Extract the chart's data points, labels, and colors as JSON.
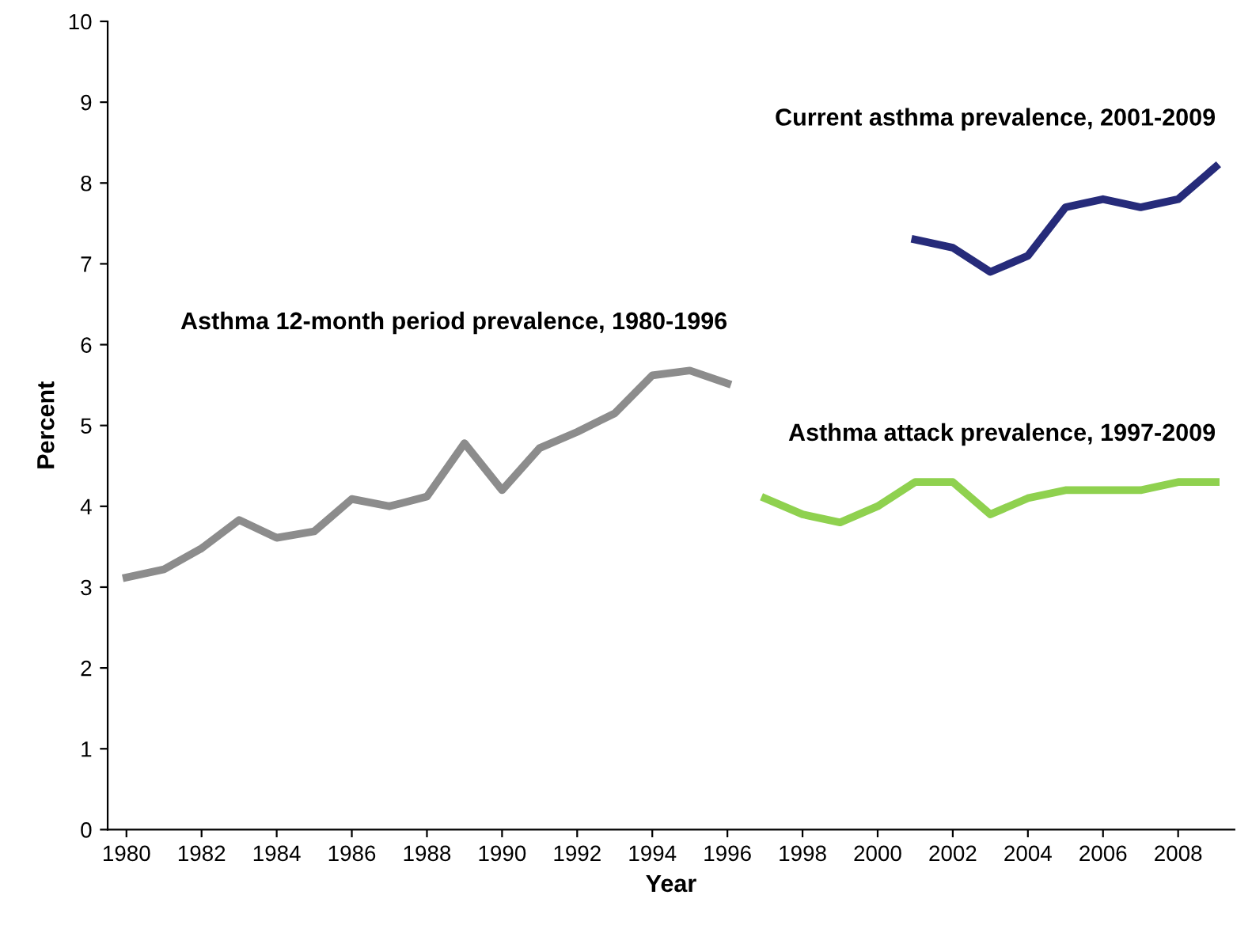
{
  "chart_data": {
    "type": "line",
    "xlabel": "Year",
    "ylabel": "Percent",
    "xlim": [
      1979.5,
      2009.5
    ],
    "xticks": [
      1980,
      1982,
      1984,
      1986,
      1988,
      1990,
      1992,
      1994,
      1996,
      1998,
      2000,
      2002,
      2004,
      2006,
      2008
    ],
    "ylim": [
      0,
      10
    ],
    "yticks": [
      0,
      1,
      2,
      3,
      4,
      5,
      6,
      7,
      8,
      9,
      10
    ],
    "grid": false,
    "legend": false,
    "series": [
      {
        "name": "Asthma 12-month period prevalence, 1980-1996",
        "color": "#8c8c8c",
        "x": [
          1980,
          1981,
          1982,
          1983,
          1984,
          1985,
          1986,
          1987,
          1988,
          1989,
          1990,
          1991,
          1992,
          1993,
          1994,
          1995,
          1996
        ],
        "values": [
          3.12,
          3.22,
          3.48,
          3.83,
          3.61,
          3.69,
          4.09,
          4.0,
          4.12,
          4.78,
          4.2,
          4.72,
          4.92,
          5.15,
          5.62,
          5.68,
          5.52
        ]
      },
      {
        "name": "Current asthma prevalence, 2001-2009",
        "color": "#262b7a",
        "x": [
          2001,
          2002,
          2003,
          2004,
          2005,
          2006,
          2007,
          2008,
          2009
        ],
        "values": [
          7.3,
          7.2,
          6.9,
          7.1,
          7.7,
          7.8,
          7.7,
          7.8,
          8.2
        ]
      },
      {
        "name": "Asthma attack prevalence, 1997-2009",
        "color": "#8fd14f",
        "x": [
          1997,
          1998,
          1999,
          2000,
          2001,
          2002,
          2003,
          2004,
          2005,
          2006,
          2007,
          2008,
          2009
        ],
        "values": [
          4.1,
          3.9,
          3.8,
          4.0,
          4.3,
          4.3,
          3.9,
          4.1,
          4.2,
          4.2,
          4.2,
          4.3,
          4.3
        ]
      }
    ]
  }
}
